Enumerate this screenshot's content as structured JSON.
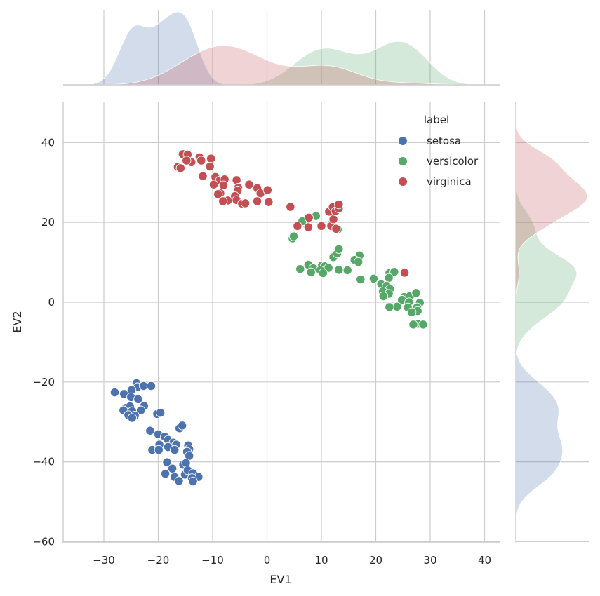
{
  "chart_data": {
    "type": "scatter",
    "title": "",
    "xlabel": "EV1",
    "ylabel": "EV2",
    "xlim": [
      -38,
      43
    ],
    "ylim": [
      -61,
      51
    ],
    "xticks": [
      -30,
      -20,
      -10,
      0,
      10,
      20,
      30,
      40
    ],
    "yticks": [
      -60,
      -40,
      -20,
      0,
      20,
      40
    ],
    "grid": true,
    "legend": {
      "title": "label",
      "placement": "top-right"
    },
    "marginals": {
      "top": "kde of EV1 by label",
      "right": "kde of EV2 by label"
    },
    "series": [
      {
        "name": "setosa",
        "color": "#4c72b0",
        "points": [
          [
            -28,
            -22.6
          ],
          [
            -26.3,
            -23
          ],
          [
            -24,
            -20.3
          ],
          [
            -23.8,
            -21.3
          ],
          [
            -22.7,
            -21
          ],
          [
            -21.3,
            -21
          ],
          [
            -24.9,
            -22
          ],
          [
            -25,
            -23.8
          ],
          [
            -23.7,
            -24.3
          ],
          [
            -26,
            -26.5
          ],
          [
            -25.2,
            -26.1
          ],
          [
            -22.6,
            -26
          ],
          [
            -26.4,
            -27.1
          ],
          [
            -24.8,
            -27.3
          ],
          [
            -23.2,
            -27.1
          ],
          [
            -25.5,
            -28.3
          ],
          [
            -24.3,
            -28.4
          ],
          [
            -24.8,
            -29
          ],
          [
            -20.2,
            -28
          ],
          [
            -19.6,
            -27.7
          ],
          [
            -21.5,
            -32.2
          ],
          [
            -20,
            -33.1
          ],
          [
            -18.8,
            -33.7
          ],
          [
            -18.2,
            -34.5
          ],
          [
            -16.1,
            -31.6
          ],
          [
            -15.6,
            -30.9
          ],
          [
            -17.2,
            -35.2
          ],
          [
            -16.7,
            -35.7
          ],
          [
            -19.8,
            -35.7
          ],
          [
            -18.2,
            -36.3
          ],
          [
            -21.1,
            -37
          ],
          [
            -19.9,
            -37
          ],
          [
            -17,
            -37
          ],
          [
            -14.5,
            -35.9
          ],
          [
            -14.3,
            -36.8
          ],
          [
            -14.7,
            -37.5
          ],
          [
            -14.3,
            -38.5
          ],
          [
            -18.4,
            -40.1
          ],
          [
            -17.4,
            -41.7
          ],
          [
            -15.4,
            -40.7
          ],
          [
            -14.9,
            -40.3
          ],
          [
            -18.7,
            -43
          ],
          [
            -17,
            -43.8
          ],
          [
            -15.1,
            -43.2
          ],
          [
            -14.6,
            -42.1
          ],
          [
            -13.6,
            -42.9
          ],
          [
            -12.6,
            -43.8
          ],
          [
            -13.8,
            -44.1
          ],
          [
            -13.6,
            -44.9
          ],
          [
            -16.2,
            -44.8
          ]
        ]
      },
      {
        "name": "versicolor",
        "color": "#55a868",
        "points": [
          [
            9,
            21.6
          ],
          [
            7,
            19.8
          ],
          [
            6.5,
            20.3
          ],
          [
            4.7,
            16
          ],
          [
            4.9,
            16.5
          ],
          [
            11.8,
            19.5
          ],
          [
            13,
            18.2
          ],
          [
            12.2,
            11.3
          ],
          [
            12.9,
            12.2
          ],
          [
            13.2,
            13.3
          ],
          [
            17,
            11.7
          ],
          [
            16.1,
            10.6
          ],
          [
            16.8,
            10.1
          ],
          [
            7.6,
            9.4
          ],
          [
            6.1,
            8.3
          ],
          [
            8.5,
            8.5
          ],
          [
            10.1,
            9.2
          ],
          [
            10.6,
            9
          ],
          [
            11.3,
            8.6
          ],
          [
            13.2,
            8.1
          ],
          [
            14.8,
            8
          ],
          [
            9.8,
            8
          ],
          [
            8.1,
            7.5
          ],
          [
            10.3,
            7.3
          ],
          [
            17.2,
            5.7
          ],
          [
            19.6,
            5.9
          ],
          [
            22.5,
            7.3
          ],
          [
            23.4,
            7.6
          ],
          [
            22.4,
            6.1
          ],
          [
            21,
            4.5
          ],
          [
            22,
            4.1
          ],
          [
            22.6,
            3.3
          ],
          [
            21.3,
            2.7
          ],
          [
            22.4,
            2.1
          ],
          [
            21.4,
            1.5
          ],
          [
            25.2,
            1.3
          ],
          [
            26.3,
            1.6
          ],
          [
            27.4,
            2.3
          ],
          [
            24.8,
            0.6
          ],
          [
            26.1,
            0
          ],
          [
            28.1,
            -0.1
          ],
          [
            23.9,
            -1.1
          ],
          [
            25.9,
            -1.3
          ],
          [
            22.5,
            -1.2
          ],
          [
            27.6,
            -1.3
          ],
          [
            27.7,
            -2.2
          ],
          [
            26.6,
            -2.5
          ],
          [
            27.8,
            -5.4
          ],
          [
            26.9,
            -5.6
          ],
          [
            28.7,
            -5.6
          ]
        ]
      },
      {
        "name": "virginica",
        "color": "#c44e52",
        "points": [
          [
            -15.5,
            37.1
          ],
          [
            -14.6,
            37
          ],
          [
            -13.9,
            35.1
          ],
          [
            -12.4,
            36.3
          ],
          [
            -12.1,
            35.5
          ],
          [
            -10.3,
            36
          ],
          [
            -10.5,
            34
          ],
          [
            -14.8,
            35.5
          ],
          [
            -16.4,
            33.9
          ],
          [
            -15.9,
            33.6
          ],
          [
            -11.8,
            31.6
          ],
          [
            -9.5,
            31.4
          ],
          [
            -8.7,
            30.5
          ],
          [
            -7.8,
            30.8
          ],
          [
            -9.8,
            29.5
          ],
          [
            -8,
            29.3
          ],
          [
            -8.6,
            27.3
          ],
          [
            -7.2,
            25.5
          ],
          [
            -9,
            27.1
          ],
          [
            -8.1,
            25.3
          ],
          [
            -5.6,
            30.6
          ],
          [
            -5.3,
            28.7
          ],
          [
            -5.4,
            28
          ],
          [
            -5.9,
            26.6
          ],
          [
            -5.6,
            25.6
          ],
          [
            -4.6,
            24.7
          ],
          [
            -4,
            24.8
          ],
          [
            -3.3,
            29.5
          ],
          [
            -1.8,
            28.6
          ],
          [
            -1.2,
            27.3
          ],
          [
            -1.8,
            25.3
          ],
          [
            0.1,
            28.1
          ],
          [
            0.3,
            25.1
          ],
          [
            4.3,
            23.9
          ],
          [
            5.6,
            19.1
          ],
          [
            7.7,
            21.2
          ],
          [
            7.6,
            18.8
          ],
          [
            10,
            19.1
          ],
          [
            11.4,
            22.7
          ],
          [
            11.8,
            19.1
          ],
          [
            12.2,
            20.8
          ],
          [
            12.1,
            23.9
          ],
          [
            12.6,
            22.8
          ],
          [
            13.2,
            23.5
          ],
          [
            13.2,
            24.5
          ],
          [
            12.7,
            18.4
          ],
          [
            25.3,
            7.4
          ]
        ]
      }
    ]
  }
}
